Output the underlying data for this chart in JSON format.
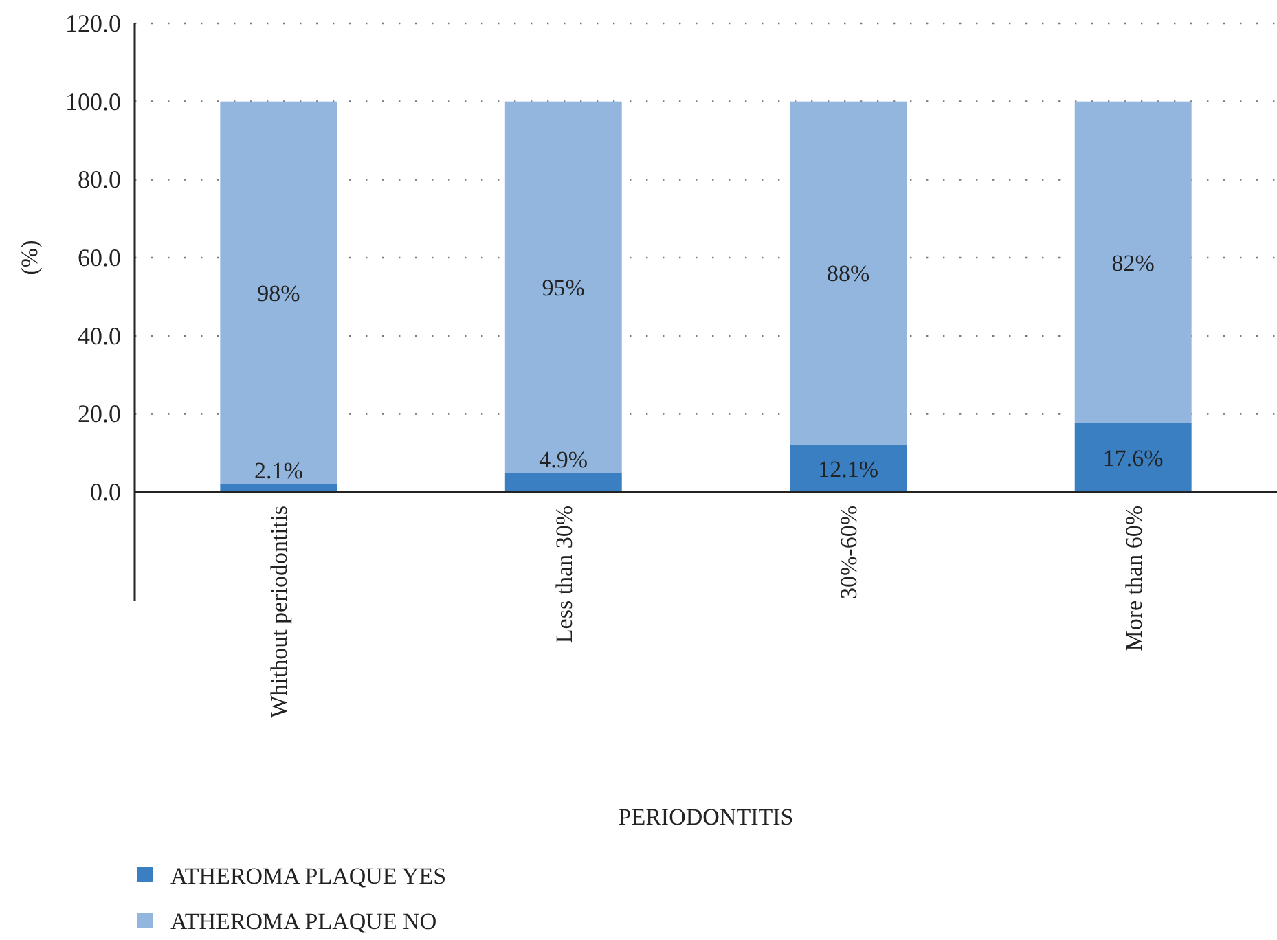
{
  "chart_data": {
    "type": "bar",
    "stacked": true,
    "xlabel": "PERIODONTITIS",
    "ylabel": "(%)",
    "categories": [
      "Whithout periodontitis",
      "Less than 30%",
      "30%-60%",
      "More than 60%"
    ],
    "series": [
      {
        "name": "ATHEROMA PLAQUE YES",
        "color": "#3a7fc1",
        "values": [
          2.1,
          4.9,
          12.1,
          17.6
        ],
        "value_labels": [
          "2.1%",
          "4.9%",
          "12.1%",
          "17.6%"
        ]
      },
      {
        "name": "ATHEROMA PLAQUE NO",
        "color": "#93b6df",
        "values": [
          97.9,
          95.1,
          87.9,
          82.4
        ],
        "value_labels": [
          "98%",
          "95%",
          "88%",
          "82%"
        ]
      }
    ],
    "ylim": [
      0,
      120
    ],
    "yticks": [
      {
        "value": 0,
        "label": "0.0"
      },
      {
        "value": 20,
        "label": "20.0"
      },
      {
        "value": 40,
        "label": "40.0"
      },
      {
        "value": 60,
        "label": "60.0"
      },
      {
        "value": 80,
        "label": "80.0"
      },
      {
        "value": 100,
        "label": "100.0"
      },
      {
        "value": 120,
        "label": "120.0"
      }
    ],
    "grid": "y",
    "legend": "bottom left"
  }
}
